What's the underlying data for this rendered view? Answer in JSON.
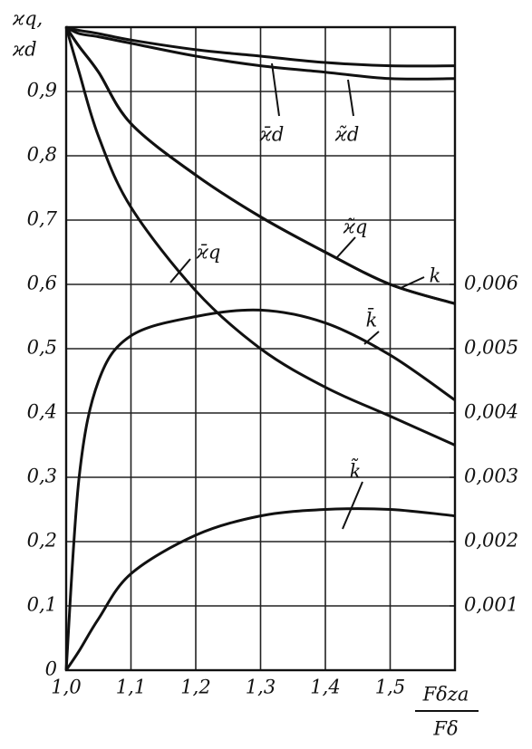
{
  "chart_data": {
    "type": "line",
    "y_label": [
      "ϰq,",
      "ϰd"
    ],
    "x_label": {
      "numerator": "Fδza",
      "denominator": "Fδ"
    },
    "x": [
      1.0,
      1.02,
      1.05,
      1.1,
      1.2,
      1.3,
      1.4,
      1.5,
      1.6
    ],
    "xlim": [
      1.0,
      1.6
    ],
    "xticks": [
      {
        "value": 1.0,
        "label": "1,0"
      },
      {
        "value": 1.1,
        "label": "1,1"
      },
      {
        "value": 1.2,
        "label": "1,2"
      },
      {
        "value": 1.3,
        "label": "1,3"
      },
      {
        "value": 1.4,
        "label": "1,4"
      },
      {
        "value": 1.5,
        "label": "1,5"
      }
    ],
    "ylim": [
      0,
      1.0
    ],
    "yticks": [
      0,
      {
        "value": 0.1,
        "label": "0,1"
      },
      {
        "value": 0.2,
        "label": "0,2"
      },
      {
        "value": 0.3,
        "label": "0,3"
      },
      {
        "value": 0.4,
        "label": "0,4"
      },
      {
        "value": 0.5,
        "label": "0,5"
      },
      {
        "value": 0.6,
        "label": "0,6"
      },
      {
        "value": 0.7,
        "label": "0,7"
      },
      {
        "value": 0.8,
        "label": "0,8"
      },
      {
        "value": 0.9,
        "label": "0,9"
      }
    ],
    "y2lim": [
      0,
      0.01
    ],
    "y2ticks": [
      {
        "value": 0.001,
        "label": "0,001"
      },
      {
        "value": 0.002,
        "label": "0,002"
      },
      {
        "value": 0.003,
        "label": "0,003"
      },
      {
        "value": 0.004,
        "label": "0,004"
      },
      {
        "value": 0.005,
        "label": "0,005"
      },
      {
        "value": 0.006,
        "label": "0,006"
      }
    ],
    "grid": true,
    "series": [
      {
        "name": "ϰ̄d",
        "color": "#111111",
        "values": [
          1.0,
          0.995,
          0.99,
          0.98,
          0.965,
          0.955,
          0.945,
          0.94,
          0.94
        ]
      },
      {
        "name": "ϰ̃d",
        "color": "#111111",
        "values": [
          1.0,
          0.99,
          0.985,
          0.975,
          0.955,
          0.94,
          0.93,
          0.92,
          0.92
        ]
      },
      {
        "name": "ϰ̃q",
        "color": "#111111",
        "values": [
          1.0,
          0.97,
          0.93,
          0.85,
          0.77,
          0.705,
          0.65,
          0.6,
          0.57
        ]
      },
      {
        "name": "ϰ̄q",
        "color": "#111111",
        "values": [
          1.0,
          0.93,
          0.83,
          0.72,
          0.59,
          0.5,
          0.44,
          0.395,
          0.35
        ]
      },
      {
        "name": "k",
        "color": "#111111",
        "axis": "y2",
        "values": [
          0.01,
          0.0097,
          0.0093,
          0.0085,
          0.0077,
          0.00705,
          0.0065,
          0.006,
          0.0057
        ]
      },
      {
        "name": "k̄",
        "color": "#111111",
        "axis": "y2",
        "values": [
          0,
          0.003,
          0.0045,
          0.0052,
          0.0055,
          0.0056,
          0.0054,
          0.0049,
          0.0042
        ]
      },
      {
        "name": "k̃",
        "color": "#111111",
        "axis": "y2",
        "values": [
          0,
          0.0003,
          0.0008,
          0.0015,
          0.0021,
          0.0024,
          0.0025,
          0.0025,
          0.0024
        ]
      }
    ]
  }
}
